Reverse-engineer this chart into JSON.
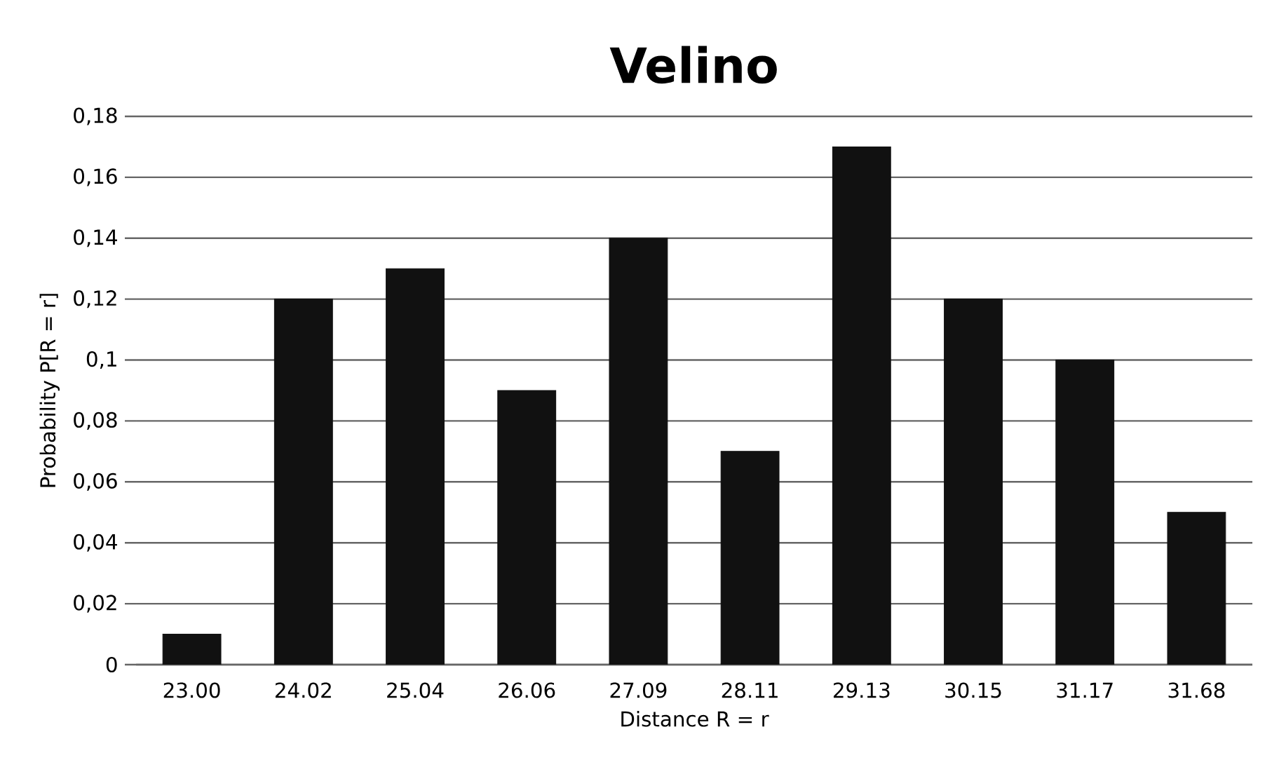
{
  "chart_data": {
    "type": "bar",
    "title": "**Velino**",
    "xlabel": "Distance R = r",
    "ylabel": "Probability P[R = r]",
    "categories": [
      "23.00",
      "24.02",
      "25.04",
      "26.06",
      "27.09",
      "28.11",
      "29.13",
      "30.15",
      "31.17",
      "31.68"
    ],
    "values": [
      0.01,
      0.12,
      0.13,
      0.09,
      0.14,
      0.07,
      0.17,
      0.12,
      0.1,
      0.05
    ],
    "color": "#111111",
    "ylim": [
      0,
      0.18
    ],
    "yticks": [
      0,
      {
        "value": 0.02,
        "label": "0,02"
      },
      {
        "value": 0.04,
        "label": "0,04"
      },
      {
        "value": 0.06,
        "label": "0,06"
      },
      {
        "value": 0.08,
        "label": "0,08"
      },
      {
        "value": 0.1,
        "label": "0,1"
      },
      {
        "value": 0.12,
        "label": "0,12"
      },
      {
        "value": 0.14,
        "label": "0,14"
      },
      {
        "value": 0.16,
        "label": "0,16"
      },
      {
        "value": 0.18,
        "label": "0,18"
      }
    ],
    "grid": "y"
  }
}
